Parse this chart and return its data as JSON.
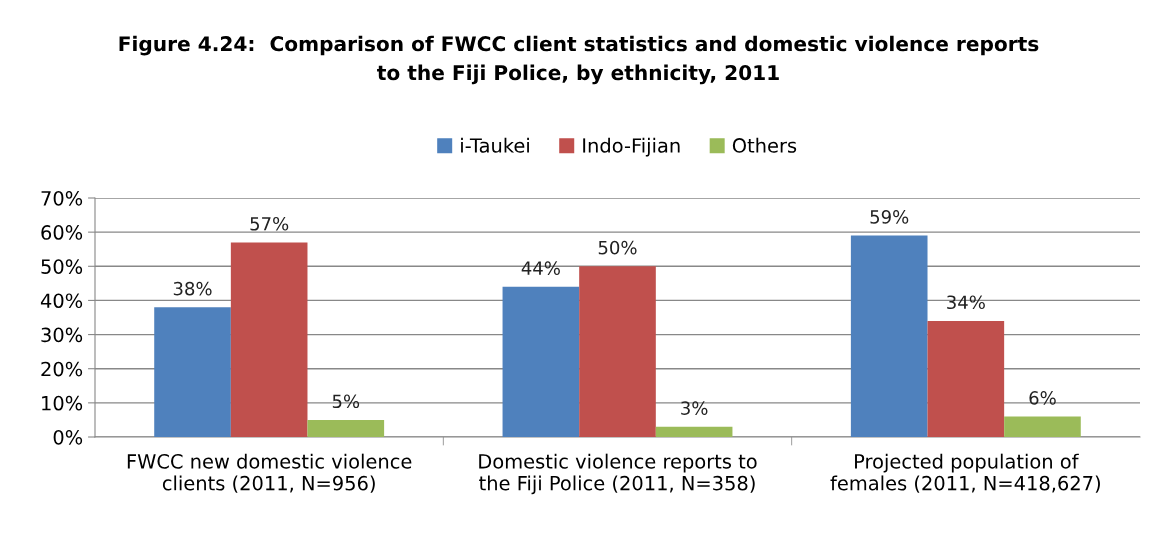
{
  "chart_data": {
    "type": "bar",
    "title": "Figure 4.24:  Comparison of FWCC client statistics and domestic violence reports\nto the Fiji Police, by ethnicity, 2011",
    "categories": [
      "FWCC new domestic violence\nclients (2011, N=956)",
      "Domestic violence reports to\nthe Fiji Police (2011, N=358)",
      "Projected population of\nfemales (2011, N=418,627)"
    ],
    "series": [
      {
        "name": "i-Taukei",
        "color": "#4f81bd",
        "values": [
          38,
          44,
          59
        ],
        "value_labels": [
          "38%",
          "44%",
          "59%"
        ]
      },
      {
        "name": "Indo-Fijian",
        "color": "#c0504d",
        "values": [
          57,
          50,
          34
        ],
        "value_labels": [
          "57%",
          "50%",
          "34%"
        ]
      },
      {
        "name": "Others",
        "color": "#9bbb59",
        "values": [
          5,
          3,
          6
        ],
        "value_labels": [
          "5%",
          "3%",
          "6%"
        ]
      }
    ],
    "ylim": [
      0,
      70
    ],
    "yticks": [
      {
        "value": 0,
        "label": "0%"
      },
      {
        "value": 10,
        "label": "10%"
      },
      {
        "value": 20,
        "label": "20%"
      },
      {
        "value": 30,
        "label": "30%"
      },
      {
        "value": 40,
        "label": "40%"
      },
      {
        "value": 50,
        "label": "50%"
      },
      {
        "value": 60,
        "label": "60%"
      },
      {
        "value": 70,
        "label": "70%"
      }
    ],
    "grid": "y",
    "legend": "top"
  }
}
